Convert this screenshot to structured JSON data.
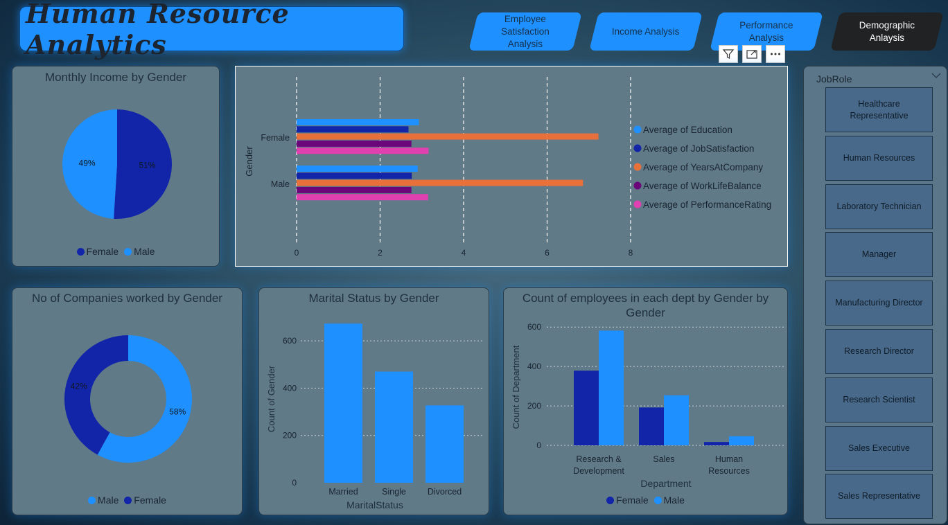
{
  "title": "Human Resource Analytics",
  "nav": [
    {
      "label": "Employee Satisfaction Analysis",
      "active": false
    },
    {
      "label": "Income Analysis",
      "active": false
    },
    {
      "label": "Performance Analysis",
      "active": false
    },
    {
      "label": "Demographic Anlaysis",
      "active": true
    }
  ],
  "toolbar": {
    "filter": "filter-icon",
    "focus": "focus-mode-icon",
    "more": "more-options-icon"
  },
  "colors": {
    "female": "#1225a8",
    "male": "#1e90ff",
    "education": "#1e90ff",
    "jobsatisfaction": "#1225a8",
    "years": "#e8703a",
    "worklife": "#6b077a",
    "performance": "#e040b0"
  },
  "slicer": {
    "title": "JobRole",
    "items": [
      "Healthcare Representative",
      "Human Resources",
      "Laboratory Technician",
      "Manager",
      "Manufacturing Director",
      "Research Director",
      "Research Scientist",
      "Sales Executive",
      "Sales Representative"
    ]
  },
  "chart_data": [
    {
      "id": "income-pie",
      "type": "pie",
      "title": "Monthly Income by Gender",
      "slices": [
        {
          "name": "Female",
          "value": 51,
          "label": "51%"
        },
        {
          "name": "Male",
          "value": 49,
          "label": "49%"
        }
      ],
      "legend": [
        "Female",
        "Male"
      ],
      "legend_position": "bottom"
    },
    {
      "id": "averages-bar",
      "type": "bar",
      "orientation": "horizontal",
      "title": "",
      "ylabel": "Gender",
      "xlabel": "",
      "categories": [
        "Female",
        "Male"
      ],
      "xlim": [
        0,
        8
      ],
      "xticks": [
        "0",
        "2",
        "4",
        "6",
        "8"
      ],
      "series": [
        {
          "name": "Average of Education",
          "values": [
            2.93,
            2.9
          ]
        },
        {
          "name": "Average of JobSatisfaction",
          "values": [
            2.68,
            2.76
          ]
        },
        {
          "name": "Average of YearsAtCompany",
          "values": [
            7.23,
            6.86
          ]
        },
        {
          "name": "Average of WorkLifeBalance",
          "values": [
            2.75,
            2.75
          ]
        },
        {
          "name": "Average of PerformanceRating",
          "values": [
            3.16,
            3.15
          ]
        }
      ],
      "legend_position": "right"
    },
    {
      "id": "companies-donut",
      "type": "pie",
      "donut": true,
      "title": "No of Companies worked by Gender",
      "slices": [
        {
          "name": "Male",
          "value": 58,
          "label": "58%"
        },
        {
          "name": "Female",
          "value": 42,
          "label": "42%"
        }
      ],
      "legend": [
        "Male",
        "Female"
      ],
      "legend_position": "bottom"
    },
    {
      "id": "marital-bar",
      "type": "bar",
      "title": "Marital Status by Gender",
      "xlabel": "MaritalStatus",
      "ylabel": "Count of Gender",
      "categories": [
        "Married",
        "Single",
        "Divorced"
      ],
      "values": [
        673,
        470,
        327
      ],
      "ylim": [
        0,
        700
      ],
      "yticks": [
        "0",
        "200",
        "400",
        "600"
      ]
    },
    {
      "id": "dept-bar",
      "type": "bar",
      "title": "Count of employees in each dept by Gender by Gender",
      "xlabel": "Department",
      "ylabel": "Count of Department",
      "categories": [
        "Research & Development",
        "Sales",
        "Human Resources"
      ],
      "series": [
        {
          "name": "Female",
          "values": [
            379,
            192,
            17
          ]
        },
        {
          "name": "Male",
          "values": [
            582,
            254,
            46
          ]
        }
      ],
      "ylim": [
        0,
        650
      ],
      "yticks": [
        "0",
        "200",
        "400",
        "600"
      ],
      "legend": [
        "Female",
        "Male"
      ],
      "legend_position": "bottom"
    }
  ]
}
